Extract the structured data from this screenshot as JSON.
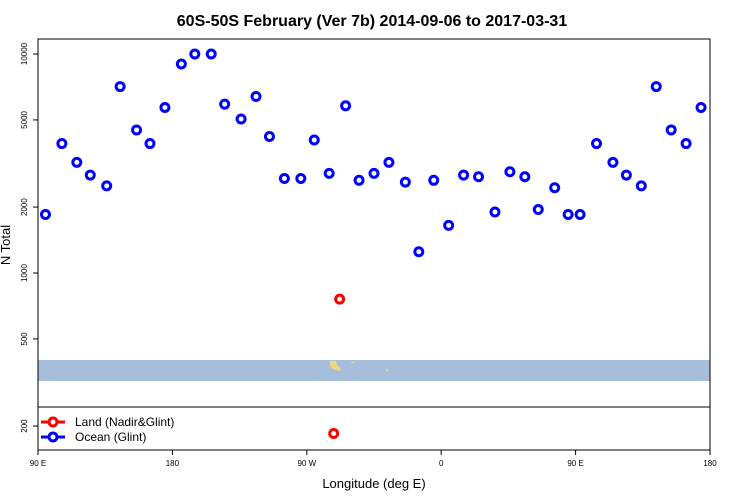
{
  "chart_data": {
    "type": "scatter",
    "title": "60S-50S February (Ver 7b)   2014-09-06 to 2017-03-31",
    "xlabel": "Longitude (deg E)",
    "ylabel": "N Total",
    "y_scale": "log",
    "ylim": [
      150,
      12000
    ],
    "x_ticks": [
      {
        "pos": 0,
        "label": "90 E"
      },
      {
        "pos": 90,
        "label": "180"
      },
      {
        "pos": 180,
        "label": "90 W"
      },
      {
        "pos": 270,
        "label": "0"
      },
      {
        "pos": 360,
        "label": "90 E"
      },
      {
        "pos": 450,
        "label": "180"
      }
    ],
    "y_ticks": [
      200,
      500,
      1000,
      2000,
      5000,
      10000
    ],
    "map_band": {
      "ocean_color": "#a7bddc",
      "land_color": "#f2d77a",
      "y_range": [
        335,
        400
      ]
    },
    "legend": [
      {
        "label": "Land (Nadir&Glint)",
        "color": "#ff0000"
      },
      {
        "label": "Ocean (Glint)",
        "color": "#0000ff"
      }
    ],
    "series": [
      {
        "name": "Ocean (Glint)",
        "color": "#0000ff",
        "points": [
          [
            5,
            1850
          ],
          [
            16,
            3900
          ],
          [
            26,
            3200
          ],
          [
            35,
            2800
          ],
          [
            46,
            2500
          ],
          [
            55,
            7100
          ],
          [
            66,
            4500
          ],
          [
            75,
            3900
          ],
          [
            85,
            5700
          ],
          [
            96,
            9000
          ],
          [
            105,
            10000
          ],
          [
            116,
            10000
          ],
          [
            125,
            5900
          ],
          [
            136,
            5050
          ],
          [
            146,
            6400
          ],
          [
            155,
            4200
          ],
          [
            165,
            2700
          ],
          [
            176,
            2700
          ],
          [
            185,
            4050
          ],
          [
            195,
            2850
          ],
          [
            206,
            5800
          ],
          [
            215,
            2650
          ],
          [
            225,
            2850
          ],
          [
            235,
            3200
          ],
          [
            246,
            2600
          ],
          [
            255,
            1250
          ],
          [
            265,
            2650
          ],
          [
            275,
            1650
          ],
          [
            285,
            2800
          ],
          [
            295,
            2750
          ],
          [
            306,
            1900
          ],
          [
            316,
            2900
          ],
          [
            326,
            2750
          ],
          [
            335,
            1950
          ],
          [
            346,
            2450
          ],
          [
            355,
            1850
          ],
          [
            363,
            1850
          ],
          [
            374,
            3900
          ],
          [
            385,
            3200
          ],
          [
            394,
            2800
          ],
          [
            404,
            2500
          ],
          [
            414,
            7100
          ],
          [
            424,
            4500
          ],
          [
            434,
            3900
          ],
          [
            444,
            5700
          ]
        ]
      },
      {
        "name": "Land (Nadir&Glint)",
        "color": "#ff0000",
        "points": [
          [
            202,
            760
          ],
          [
            198,
            185
          ]
        ]
      }
    ]
  }
}
